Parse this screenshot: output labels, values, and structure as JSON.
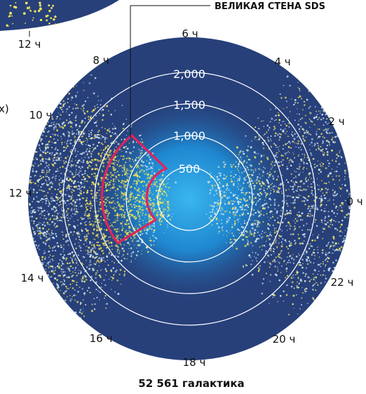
{
  "callout": {
    "label": "ВЕЛИКАЯ СТЕНА SDS"
  },
  "inset": {
    "hour_label": "12 ч"
  },
  "fragment_left": "х)",
  "hours": {
    "h0": "0 ч",
    "h2": "2 ч",
    "h4": "4 ч",
    "h6": "6 ч",
    "h8": "8 ч",
    "h10": "10 ч",
    "h12": "12 ч",
    "h14": "14 ч",
    "h16": "16 ч",
    "h18": "18 ч",
    "h20": "20 ч",
    "h22": "22 ч"
  },
  "distances": {
    "d500": "500",
    "d1000": "1,000",
    "d1500": "1,500",
    "d2000": "2,000"
  },
  "caption": "52 561 галактика",
  "colors": {
    "disk_background": "#27407a",
    "inner_glow": "#2aa0e0",
    "galaxies": "#f3e35a",
    "wall_outline": "#e0245e",
    "rings": "#ffffff"
  }
}
